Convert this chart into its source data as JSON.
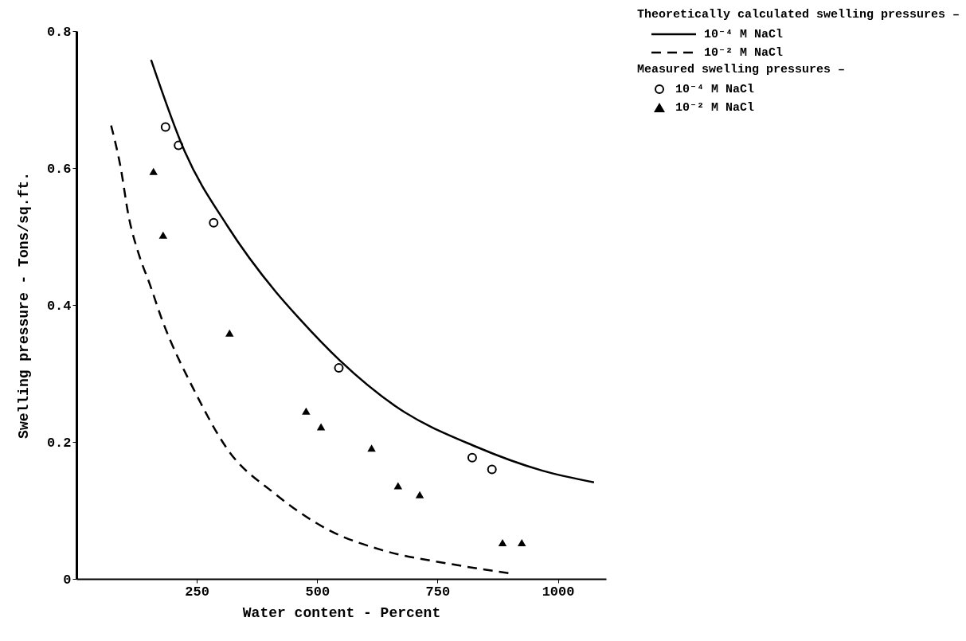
{
  "chart_data": {
    "type": "line",
    "xlabel": "Water content - Percent",
    "ylabel": "Swelling pressure - Tons/sq.ft.",
    "xlim": [
      0,
      1100
    ],
    "ylim": [
      0,
      0.8
    ],
    "xticks": [
      250,
      500,
      750,
      1000
    ],
    "yticks": [
      0,
      0.2,
      0.4,
      0.6,
      0.8
    ],
    "grid": false,
    "legend": "top right",
    "annotations": [
      "Theoretically calculated swelling pressures –",
      "Measured swelling pressures –"
    ],
    "series": [
      {
        "name": "10⁻⁴ M NaCl",
        "line_style": "solid",
        "color": "#000000",
        "x": [
          155,
          225,
          313,
          413,
          463,
          547,
          663,
          830,
          968,
          1075
        ],
        "values": [
          0.758,
          0.624,
          0.516,
          0.42,
          0.38,
          0.319,
          0.252,
          0.193,
          0.158,
          0.141
        ]
      },
      {
        "name": "10⁻² M NaCl",
        "line_style": "dashed",
        "color": "#000000",
        "x": [
          72,
          92,
          108,
          130,
          152,
          177,
          247,
          313,
          413,
          525,
          635,
          775,
          902
        ],
        "values": [
          0.662,
          0.6,
          0.531,
          0.473,
          0.431,
          0.38,
          0.272,
          0.19,
          0.124,
          0.071,
          0.042,
          0.022,
          0.008
        ]
      },
      {
        "name": "10⁻⁴ M NaCl",
        "type": "scatter",
        "marker": "circle",
        "color": "#000000",
        "x": [
          185,
          212,
          285,
          545,
          822,
          863
        ],
        "values": [
          0.66,
          0.633,
          0.52,
          0.308,
          0.177,
          0.16
        ]
      },
      {
        "name": "10⁻² M NaCl",
        "type": "scatter",
        "marker": "triangle",
        "color": "#000000",
        "x": [
          160,
          180,
          318,
          477,
          508,
          613,
          668,
          713,
          885,
          925
        ],
        "values": [
          0.595,
          0.502,
          0.359,
          0.245,
          0.222,
          0.191,
          0.136,
          0.123,
          0.053,
          0.053
        ]
      }
    ]
  }
}
